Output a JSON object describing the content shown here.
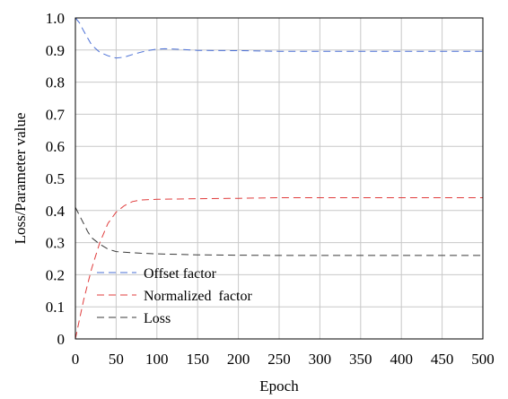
{
  "chart_data": {
    "type": "line",
    "title": "",
    "xlabel": "Epoch",
    "ylabel": "Loss/Parameter value",
    "xlim": [
      0,
      500
    ],
    "ylim": [
      0,
      1.0
    ],
    "x_ticks": [
      "0",
      "50",
      "100",
      "150",
      "200",
      "250",
      "300",
      "350",
      "400",
      "450",
      "500"
    ],
    "y_ticks": [
      "0",
      "0.1",
      "0.2",
      "0.3",
      "0.4",
      "0.5",
      "0.6",
      "0.7",
      "0.8",
      "0.9",
      "1.0"
    ],
    "grid": true,
    "legend_position": "bottom-left",
    "series": [
      {
        "name": "Offset factor",
        "color": "#4a6fd6",
        "x": [
          0,
          5,
          10,
          20,
          30,
          40,
          50,
          60,
          70,
          80,
          90,
          100,
          110,
          130,
          150,
          200,
          250,
          300,
          350,
          400,
          450,
          500
        ],
        "y": [
          1.0,
          0.985,
          0.96,
          0.915,
          0.893,
          0.882,
          0.875,
          0.878,
          0.886,
          0.893,
          0.899,
          0.903,
          0.904,
          0.902,
          0.899,
          0.898,
          0.896,
          0.896,
          0.896,
          0.896,
          0.896,
          0.896
        ]
      },
      {
        "name": "Normalized  factor",
        "color": "#e03c3c",
        "x": [
          0,
          5,
          10,
          15,
          20,
          30,
          40,
          50,
          60,
          70,
          80,
          100,
          150,
          200,
          250,
          300,
          350,
          400,
          450,
          500
        ],
        "y": [
          0.0,
          0.06,
          0.12,
          0.17,
          0.22,
          0.3,
          0.36,
          0.395,
          0.415,
          0.428,
          0.433,
          0.435,
          0.437,
          0.438,
          0.44,
          0.44,
          0.44,
          0.44,
          0.44,
          0.44
        ]
      },
      {
        "name": "Loss",
        "color": "#3a3a3a",
        "x": [
          0,
          5,
          10,
          15,
          20,
          30,
          40,
          50,
          60,
          80,
          100,
          150,
          200,
          250,
          300,
          350,
          400,
          450,
          500
        ],
        "y": [
          0.41,
          0.385,
          0.36,
          0.335,
          0.315,
          0.295,
          0.28,
          0.272,
          0.27,
          0.267,
          0.265,
          0.262,
          0.261,
          0.26,
          0.26,
          0.26,
          0.26,
          0.26,
          0.26
        ]
      }
    ]
  }
}
